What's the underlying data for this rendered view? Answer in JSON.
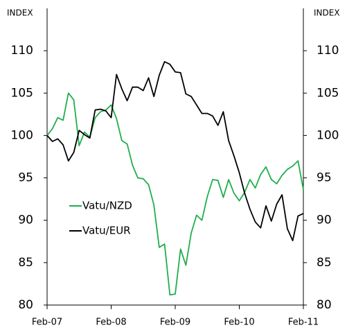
{
  "chart_data": {
    "type": "line",
    "ylabel": "INDEX",
    "y2label": "INDEX",
    "categories": [
      "Feb-07",
      null,
      null,
      null,
      null,
      null,
      null,
      null,
      null,
      null,
      null,
      null,
      "Feb-08",
      null,
      null,
      null,
      null,
      null,
      null,
      null,
      null,
      null,
      null,
      null,
      "Feb-09",
      null,
      null,
      null,
      null,
      null,
      null,
      null,
      null,
      null,
      null,
      null,
      "Feb-10",
      null,
      null,
      null,
      null,
      null,
      null,
      null,
      null,
      null,
      null,
      null,
      "Feb-11"
    ],
    "series": [
      {
        "name": "Vatu/NZD",
        "color": "#1fae4b",
        "values": [
          100,
          100.8,
          102.1,
          101.8,
          105.0,
          104.2,
          98.8,
          100.4,
          99.8,
          102.1,
          102.8,
          103.0,
          103.6,
          102.0,
          99.4,
          99.0,
          96.5,
          95.0,
          94.9,
          94.2,
          91.8,
          86.8,
          87.2,
          81.2,
          81.3,
          86.6,
          84.7,
          88.5,
          90.6,
          90.0,
          92.8,
          94.8,
          94.7,
          92.7,
          94.8,
          93.2,
          92.3,
          93.3,
          94.8,
          93.8,
          95.4,
          96.3,
          94.8,
          94.3,
          95.3,
          96.0,
          96.4,
          97.0,
          93.6
        ]
      },
      {
        "name": "Vatu/EUR",
        "color": "#000000",
        "values": [
          100,
          99.3,
          99.6,
          98.9,
          97.0,
          98.0,
          100.6,
          100.1,
          99.7,
          103.0,
          103.1,
          102.9,
          102.1,
          107.2,
          105.5,
          104.1,
          105.7,
          105.7,
          105.3,
          106.8,
          104.6,
          107.1,
          108.7,
          108.4,
          107.5,
          107.4,
          104.9,
          104.6,
          103.6,
          102.6,
          102.6,
          102.3,
          101.2,
          102.8,
          99.4,
          97.6,
          95.6,
          93.2,
          91.3,
          89.8,
          89.1,
          91.7,
          89.9,
          91.9,
          93.0,
          89.0,
          87.6,
          90.5,
          90.8
        ]
      }
    ],
    "ylim": [
      80,
      115
    ],
    "yticks": [
      80,
      85,
      90,
      95,
      100,
      105,
      110
    ],
    "y2lim": [
      80,
      115
    ],
    "y2ticks": [
      80,
      85,
      90,
      95,
      100,
      105,
      110
    ],
    "legend": "left",
    "grid": false
  }
}
